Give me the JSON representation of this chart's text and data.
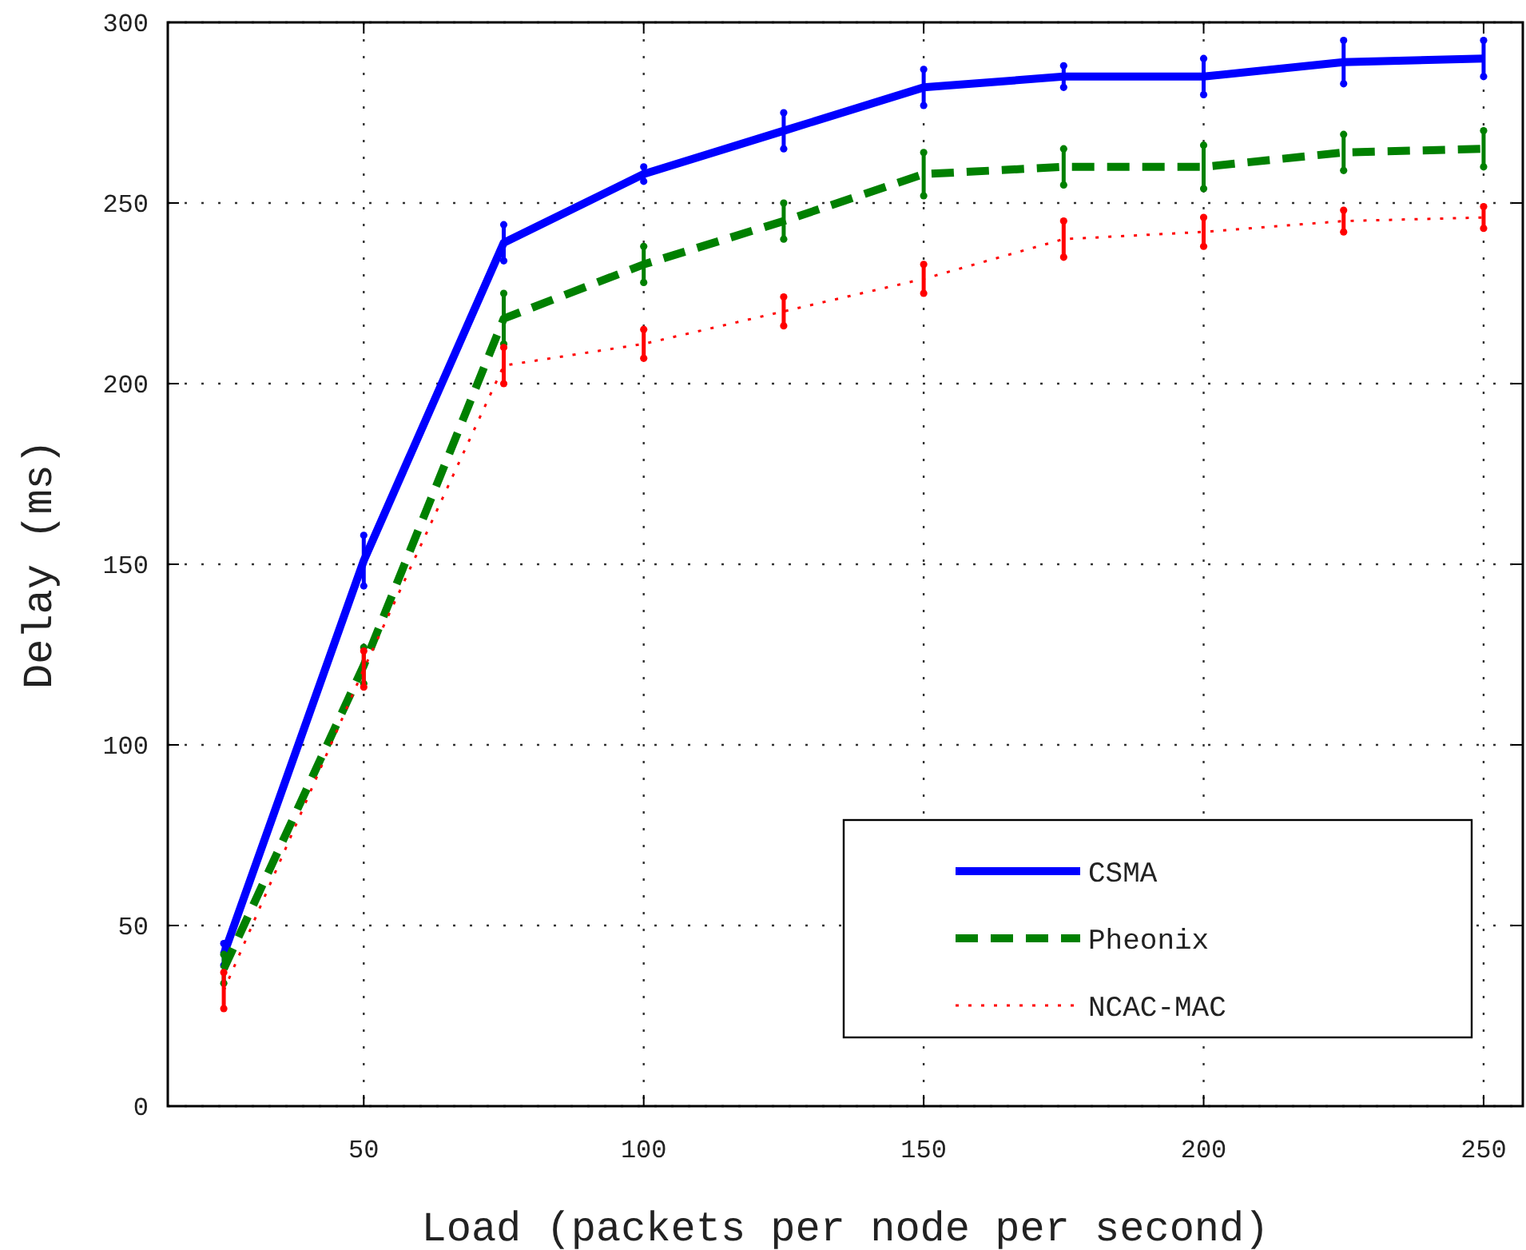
{
  "chart_data": {
    "type": "line",
    "xlabel": "Load (packets per node per second)",
    "ylabel": "Delay (ms)",
    "x": [
      25,
      50,
      75,
      100,
      125,
      150,
      175,
      200,
      225,
      250
    ],
    "xlim": [
      15,
      257
    ],
    "xticks": [
      50,
      100,
      150,
      200,
      250
    ],
    "ylim": [
      0,
      300
    ],
    "yticks": [
      0,
      50,
      100,
      150,
      200,
      250,
      300
    ],
    "grid": true,
    "legend": "bottom right",
    "marker": "none",
    "series": [
      {
        "name": "CSMA",
        "color": "#0000ff",
        "line_style": "solid",
        "values": [
          42,
          151,
          239,
          258,
          270,
          282,
          285,
          285,
          289,
          290
        ],
        "errors": [
          3,
          7,
          5,
          2,
          5,
          5,
          3,
          5,
          6,
          5
        ]
      },
      {
        "name": "Pheonix",
        "color": "#008000",
        "line_style": "dashed",
        "values": [
          38,
          122,
          218,
          233,
          245,
          258,
          260,
          260,
          264,
          265
        ],
        "errors": [
          4,
          5,
          7,
          5,
          5,
          6,
          5,
          6,
          5,
          5
        ]
      },
      {
        "name": "NCAC-MAC",
        "color": "#ff0000",
        "line_style": "dotted",
        "values": [
          32,
          121,
          205,
          211,
          220,
          229,
          240,
          242,
          245,
          246
        ],
        "errors": [
          5,
          5,
          5,
          4,
          4,
          4,
          5,
          4,
          3,
          3
        ]
      }
    ]
  }
}
